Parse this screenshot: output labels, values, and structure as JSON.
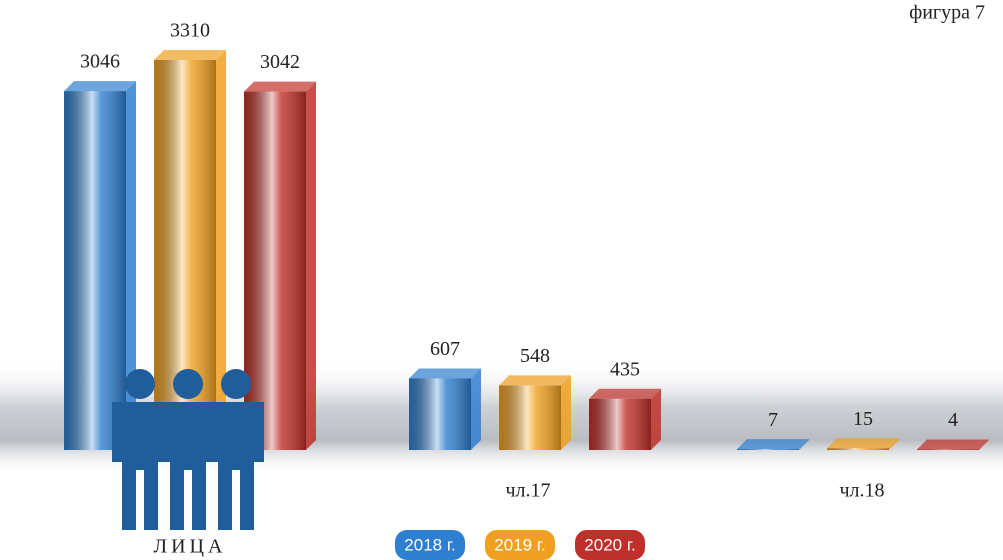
{
  "chart_data": {
    "type": "bar",
    "title": "фигура 7",
    "categories": [
      "ЛИЦА",
      "чл.17",
      "чл.18"
    ],
    "series": [
      {
        "name": "2018 г.",
        "color": "#2f7fd0",
        "values": [
          3046,
          607,
          7
        ]
      },
      {
        "name": "2019 г.",
        "color": "#f0a020",
        "values": [
          3310,
          548,
          15
        ]
      },
      {
        "name": "2020 г.",
        "color": "#c0302a",
        "values": [
          3042,
          435,
          4
        ]
      }
    ]
  }
}
